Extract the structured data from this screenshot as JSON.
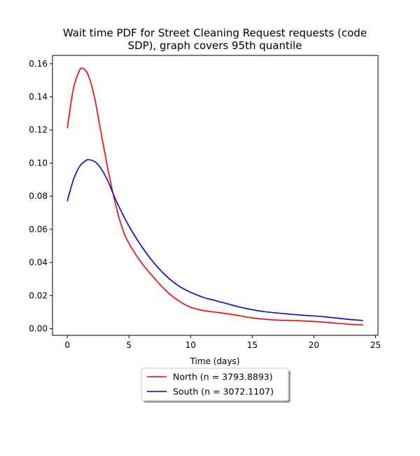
{
  "chart_data": {
    "type": "line",
    "title_line1": "Wait time PDF for Street Cleaning Request  requests (code",
    "title_line2": "SDP), graph covers 95th quantile",
    "xlabel": "Time (days)",
    "ylabel": "",
    "xlim": [
      -1.2,
      25.2
    ],
    "ylim": [
      -0.004,
      0.165
    ],
    "xticks": [
      0,
      5,
      10,
      15,
      20,
      25
    ],
    "yticks": [
      0.0,
      0.02,
      0.04,
      0.06,
      0.08,
      0.1,
      0.12,
      0.14,
      0.16
    ],
    "xtick_labels": [
      "0",
      "5",
      "10",
      "15",
      "20",
      "25"
    ],
    "ytick_labels": [
      "0.00",
      "0.02",
      "0.04",
      "0.06",
      "0.08",
      "0.10",
      "0.12",
      "0.14",
      "0.16"
    ],
    "legend_position": "bottom-center, below plot",
    "grid": false,
    "series": [
      {
        "name": "North (n = 3793.8893)",
        "color": "#ff0000",
        "x": [
          0,
          0.5,
          1.0,
          1.3,
          1.7,
          2.2,
          2.7,
          3.2,
          3.7,
          4.2,
          4.7,
          5.2,
          6,
          7,
          8,
          9,
          10,
          11,
          12,
          13,
          14,
          15,
          16,
          17,
          18,
          19,
          20,
          21,
          22,
          23,
          24
        ],
        "y": [
          0.121,
          0.145,
          0.156,
          0.157,
          0.153,
          0.14,
          0.12,
          0.1,
          0.082,
          0.067,
          0.056,
          0.049,
          0.04,
          0.031,
          0.023,
          0.017,
          0.013,
          0.011,
          0.01,
          0.009,
          0.0078,
          0.0065,
          0.0057,
          0.0052,
          0.005,
          0.0047,
          0.0044,
          0.0038,
          0.0032,
          0.0026,
          0.0023
        ]
      },
      {
        "name": "South (n = 3072.1107)",
        "color": "#0000ff",
        "x": [
          0,
          0.5,
          1.0,
          1.5,
          1.8,
          2.3,
          2.8,
          3.3,
          3.8,
          4.3,
          5,
          6,
          7,
          8,
          9,
          10,
          11,
          12,
          13,
          14,
          15,
          16,
          17,
          18,
          19,
          20,
          21,
          22,
          23,
          24
        ],
        "y": [
          0.077,
          0.09,
          0.098,
          0.1015,
          0.102,
          0.1005,
          0.096,
          0.089,
          0.08,
          0.072,
          0.062,
          0.05,
          0.04,
          0.032,
          0.026,
          0.022,
          0.019,
          0.017,
          0.015,
          0.013,
          0.0115,
          0.0103,
          0.0095,
          0.0088,
          0.0082,
          0.0077,
          0.0071,
          0.0063,
          0.0055,
          0.005
        ]
      }
    ]
  }
}
